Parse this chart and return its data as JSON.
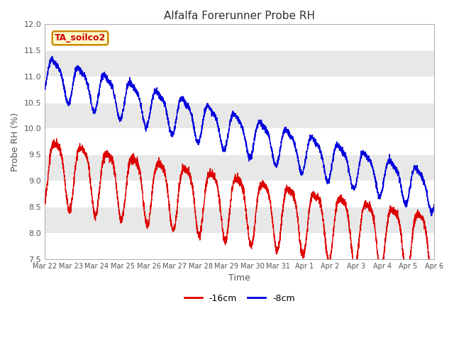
{
  "title": "Alfalfa Forerunner Probe RH",
  "ylabel": "Probe RH (%)",
  "xlabel": "Time",
  "ylim": [
    7.5,
    12.0
  ],
  "yticks": [
    7.5,
    8.0,
    8.5,
    9.0,
    9.5,
    10.0,
    10.5,
    11.0,
    11.5,
    12.0
  ],
  "date_labels": [
    "Mar 22",
    "Mar 23",
    "Mar 24",
    "Mar 25",
    "Mar 26",
    "Mar 27",
    "Mar 28",
    "Mar 29",
    "Mar 30",
    "Mar 31",
    "Apr 1",
    "Apr 2",
    "Apr 3",
    "Apr 4",
    "Apr 5",
    "Apr 6"
  ],
  "legend_label": "TA_soilco2",
  "legend_label_color": "#cc0000",
  "legend_label_bg": "#ffffcc",
  "legend_label_border": "#cc8800",
  "line_red_label": "-16cm",
  "line_blue_label": "-8cm",
  "line_red_color": "#dd0000",
  "line_blue_color": "#0000dd",
  "bg_band_color": "#e8e8e8",
  "title_color": "#333333",
  "axis_label_color": "#555555",
  "tick_label_color": "#555555",
  "figwidth": 6.4,
  "figheight": 4.8,
  "dpi": 100
}
